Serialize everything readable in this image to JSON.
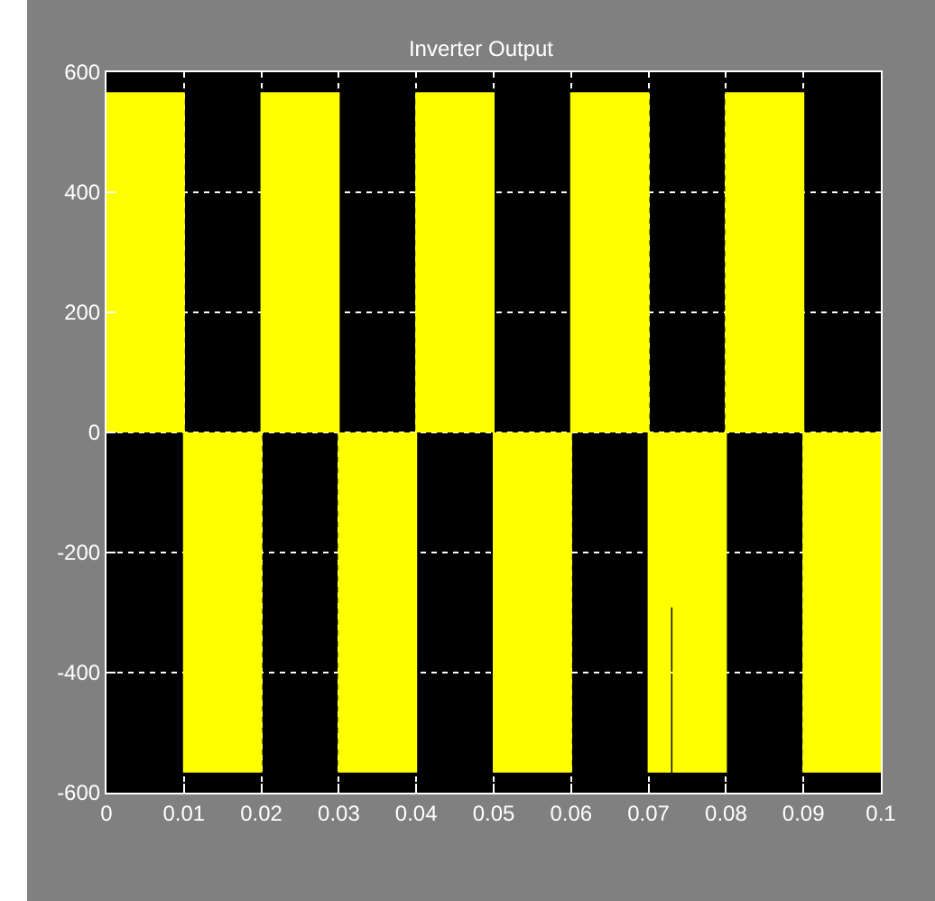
{
  "chart_data": {
    "type": "step",
    "title": "Inverter Output",
    "x": [
      0,
      0.01,
      0.02,
      0.03,
      0.04,
      0.05,
      0.06,
      0.07,
      0.0728,
      0.0732,
      0.08,
      0.09,
      0.1
    ],
    "series": [
      {
        "color": "#ffff00",
        "values": [
          565,
          -565,
          565,
          -565,
          565,
          -565,
          565,
          -565,
          -290,
          -565,
          565,
          -565,
          -565
        ]
      }
    ],
    "xlim": [
      0,
      0.1
    ],
    "xticks": [
      0,
      0.01,
      0.02,
      0.03,
      0.04,
      0.05,
      0.06,
      0.07,
      0.08,
      0.09,
      0.1
    ],
    "ylim": [
      -600,
      600
    ],
    "yticks": [
      -600,
      -400,
      -200,
      0,
      200,
      400,
      600
    ],
    "grid": true,
    "marker": "none"
  }
}
